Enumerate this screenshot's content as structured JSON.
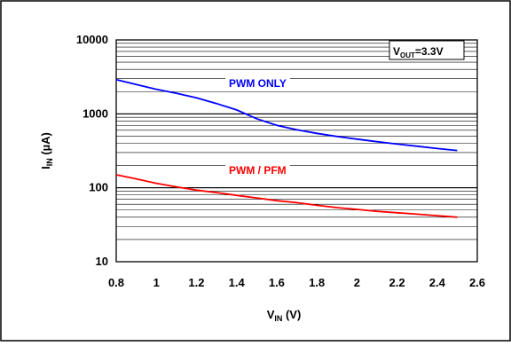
{
  "chart_data": {
    "type": "line",
    "y_scale": "log",
    "xlim": [
      0.8,
      2.6
    ],
    "ylim": [
      10,
      10000
    ],
    "x_ticks": [
      "0.8",
      "1",
      "1.2",
      "1.4",
      "1.6",
      "1.8",
      "2",
      "2.2",
      "2.4",
      "2.6"
    ],
    "y_ticks": [
      "10",
      "100",
      "1000",
      "10000"
    ],
    "xlabel": {
      "main": "V",
      "sub": "IN",
      "tail": " (V)"
    },
    "ylabel": {
      "main": "I",
      "sub": "IN",
      "tail": " (µA)"
    },
    "grid": "horizontal",
    "annotation": {
      "main": "V",
      "sub": "OUT",
      "tail": "=3.3V"
    },
    "series": [
      {
        "name": "PWM ONLY",
        "color": "#0000ff",
        "x": [
          0.8,
          0.9,
          1.0,
          1.1,
          1.2,
          1.3,
          1.4,
          1.5,
          1.6,
          1.7,
          1.8,
          1.9,
          2.0,
          2.1,
          2.2,
          2.3,
          2.4,
          2.5
        ],
        "y": [
          2900,
          2500,
          2150,
          1900,
          1650,
          1380,
          1130,
          860,
          700,
          610,
          545,
          495,
          455,
          420,
          390,
          365,
          340,
          320
        ]
      },
      {
        "name": "PWM / PFM",
        "color": "#ff0000",
        "x": [
          0.8,
          0.9,
          1.0,
          1.1,
          1.2,
          1.3,
          1.4,
          1.5,
          1.6,
          1.7,
          1.8,
          1.9,
          2.0,
          2.1,
          2.2,
          2.3,
          2.4,
          2.5
        ],
        "y": [
          150,
          132,
          115,
          103,
          93,
          86,
          79,
          73,
          67,
          63,
          58,
          54,
          51,
          48,
          46,
          44,
          42,
          40
        ]
      }
    ]
  }
}
